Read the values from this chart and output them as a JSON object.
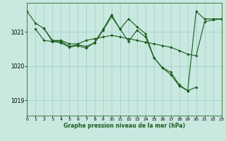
{
  "bg_color": "#c8e8e0",
  "grid_color": "#a0cccc",
  "line_color": "#1a5c1a",
  "marker_color": "#1a5c1a",
  "xlabel": "Graphe pression niveau de la mer (hPa)",
  "xlim": [
    0,
    23
  ],
  "ylim": [
    1018.55,
    1021.85
  ],
  "yticks": [
    1019,
    1020,
    1021
  ],
  "xticks": [
    0,
    1,
    2,
    3,
    4,
    5,
    6,
    7,
    8,
    9,
    10,
    11,
    12,
    13,
    14,
    15,
    16,
    17,
    18,
    19,
    20,
    21,
    22,
    23
  ],
  "series": [
    {
      "x": [
        0,
        1,
        2,
        3,
        4,
        5,
        6,
        7,
        8,
        9,
        10,
        11,
        12,
        13,
        14,
        15,
        16,
        17,
        18,
        19,
        20,
        21,
        22,
        23
      ],
      "y": [
        1021.6,
        1021.25,
        1021.1,
        1020.75,
        1020.75,
        1020.65,
        1020.65,
        1020.75,
        1020.8,
        1020.85,
        1020.9,
        1020.85,
        1020.8,
        1020.75,
        1020.7,
        1020.65,
        1020.6,
        1020.55,
        1020.45,
        1020.35,
        1020.3,
        1021.3,
        1021.35,
        1021.38
      ]
    },
    {
      "x": [
        2,
        3,
        4,
        5,
        6,
        7,
        8,
        9,
        10,
        11,
        12,
        13,
        14,
        15,
        16,
        17,
        18,
        19,
        20
      ],
      "y": [
        1021.1,
        1020.72,
        1020.72,
        1020.58,
        1020.62,
        1020.58,
        1020.68,
        1021.05,
        1021.45,
        1021.08,
        1021.38,
        1021.15,
        1020.95,
        1020.25,
        1019.95,
        1019.75,
        1019.42,
        1019.28,
        1019.38
      ]
    },
    {
      "x": [
        1,
        2,
        3,
        4,
        5,
        6,
        7,
        8,
        9,
        10,
        11,
        12,
        13,
        14,
        15,
        16,
        17,
        18,
        19,
        20,
        21,
        22,
        23
      ],
      "y": [
        1021.08,
        1020.75,
        1020.72,
        1020.68,
        1020.55,
        1020.6,
        1020.52,
        1020.7,
        1021.08,
        1021.5,
        1021.08,
        1020.72,
        1021.05,
        1020.85,
        1020.25,
        1019.95,
        1019.82,
        1019.45,
        1019.28,
        1021.6,
        1021.38,
        1021.38,
        1021.38
      ]
    }
  ]
}
